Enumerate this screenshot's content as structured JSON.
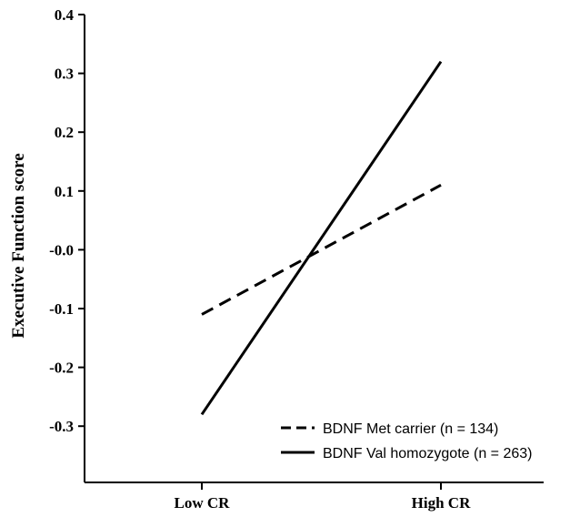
{
  "chart_data": {
    "type": "line",
    "title": "",
    "xlabel": "",
    "ylabel": "Executive Function score",
    "categories": [
      "Low CR",
      "High CR"
    ],
    "ylim": [
      -0.4,
      0.4
    ],
    "yticks": [
      {
        "value": 0.4,
        "label": "0.4"
      },
      {
        "value": 0.3,
        "label": "0.3"
      },
      {
        "value": 0.2,
        "label": "0.2"
      },
      {
        "value": 0.1,
        "label": "0.1"
      },
      {
        "value": 0.0,
        "label": "-0.0"
      },
      {
        "value": -0.1,
        "label": "-0.1"
      },
      {
        "value": -0.2,
        "label": "-0.2"
      },
      {
        "value": -0.3,
        "label": "-0.3"
      }
    ],
    "grid": false,
    "legend_position": "bottom-right",
    "series": [
      {
        "name": "BDNF Met carrier (n = 134)",
        "values": [
          -0.11,
          0.11
        ],
        "style": "dashed",
        "color": "#000000"
      },
      {
        "name": "BDNF Val homozygote (n = 263)",
        "values": [
          -0.28,
          0.32
        ],
        "style": "solid",
        "color": "#000000"
      }
    ]
  }
}
